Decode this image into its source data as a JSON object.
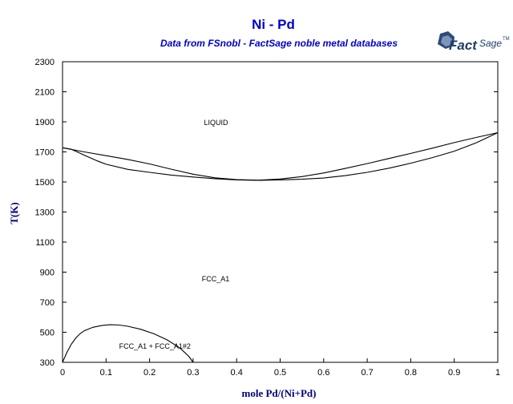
{
  "header": {
    "title": "Ni - Pd",
    "subtitle": "Data from FSnobl - FactSage noble metal databases",
    "logo": {
      "fact": "Fact",
      "sage": "Sage",
      "tm": "TM"
    }
  },
  "colors": {
    "title": "#0000cc",
    "axis_label": "#000080",
    "line": "#000000",
    "logo": "#1f3f6b"
  },
  "chart_data": {
    "type": "line",
    "title": "Ni - Pd",
    "subtitle": "Data from FSnobl - FactSage noble metal databases",
    "xlabel": "mole Pd/(Ni+Pd)",
    "ylabel": "T(K)",
    "xlim": [
      0,
      1
    ],
    "ylim": [
      300,
      2300
    ],
    "xticks": [
      0,
      0.1,
      0.2,
      0.3,
      0.4,
      0.5,
      0.6,
      0.7,
      0.8,
      0.9,
      1
    ],
    "yticks": [
      300,
      500,
      700,
      900,
      1100,
      1300,
      1500,
      1700,
      1900,
      2100,
      2300
    ],
    "grid": false,
    "series": [
      {
        "points": [
          [
            0,
            1728
          ],
          [
            0.05,
            1700
          ],
          [
            0.1,
            1675
          ],
          [
            0.15,
            1650
          ],
          [
            0.2,
            1620
          ],
          [
            0.25,
            1585
          ],
          [
            0.3,
            1552
          ],
          [
            0.35,
            1528
          ],
          [
            0.4,
            1516
          ],
          [
            0.45,
            1512
          ],
          [
            0.5,
            1520
          ],
          [
            0.55,
            1536
          ],
          [
            0.6,
            1560
          ],
          [
            0.65,
            1590
          ],
          [
            0.7,
            1622
          ],
          [
            0.75,
            1656
          ],
          [
            0.8,
            1690
          ],
          [
            0.85,
            1725
          ],
          [
            0.9,
            1762
          ],
          [
            0.95,
            1796
          ],
          [
            1,
            1828
          ]
        ]
      },
      {
        "points": [
          [
            0,
            1728
          ],
          [
            0.02,
            1718
          ],
          [
            0.05,
            1678
          ],
          [
            0.08,
            1640
          ],
          [
            0.1,
            1618
          ],
          [
            0.15,
            1584
          ],
          [
            0.2,
            1564
          ],
          [
            0.25,
            1546
          ],
          [
            0.3,
            1533
          ],
          [
            0.35,
            1522
          ],
          [
            0.4,
            1514
          ],
          [
            0.45,
            1511
          ],
          [
            0.5,
            1514
          ],
          [
            0.55,
            1518
          ],
          [
            0.6,
            1526
          ],
          [
            0.65,
            1542
          ],
          [
            0.7,
            1564
          ],
          [
            0.75,
            1592
          ],
          [
            0.8,
            1625
          ],
          [
            0.85,
            1662
          ],
          [
            0.9,
            1705
          ],
          [
            0.95,
            1760
          ],
          [
            1,
            1828
          ]
        ]
      },
      {
        "points": [
          [
            0,
            300
          ],
          [
            0.01,
            365
          ],
          [
            0.02,
            420
          ],
          [
            0.03,
            460
          ],
          [
            0.04,
            490
          ],
          [
            0.05,
            510
          ],
          [
            0.07,
            533
          ],
          [
            0.09,
            545
          ],
          [
            0.11,
            550
          ],
          [
            0.13,
            548
          ],
          [
            0.15,
            540
          ],
          [
            0.18,
            520
          ],
          [
            0.21,
            490
          ],
          [
            0.24,
            450
          ],
          [
            0.27,
            395
          ],
          [
            0.29,
            340
          ],
          [
            0.3,
            300
          ]
        ]
      }
    ],
    "annotations": [
      {
        "text": "LIQUID",
        "x": 0.325,
        "y": 1880
      },
      {
        "text": "FCC_A1",
        "x": 0.32,
        "y": 838
      },
      {
        "text": "FCC_A1 + FCC_A1#2",
        "x": 0.13,
        "y": 390
      }
    ]
  }
}
